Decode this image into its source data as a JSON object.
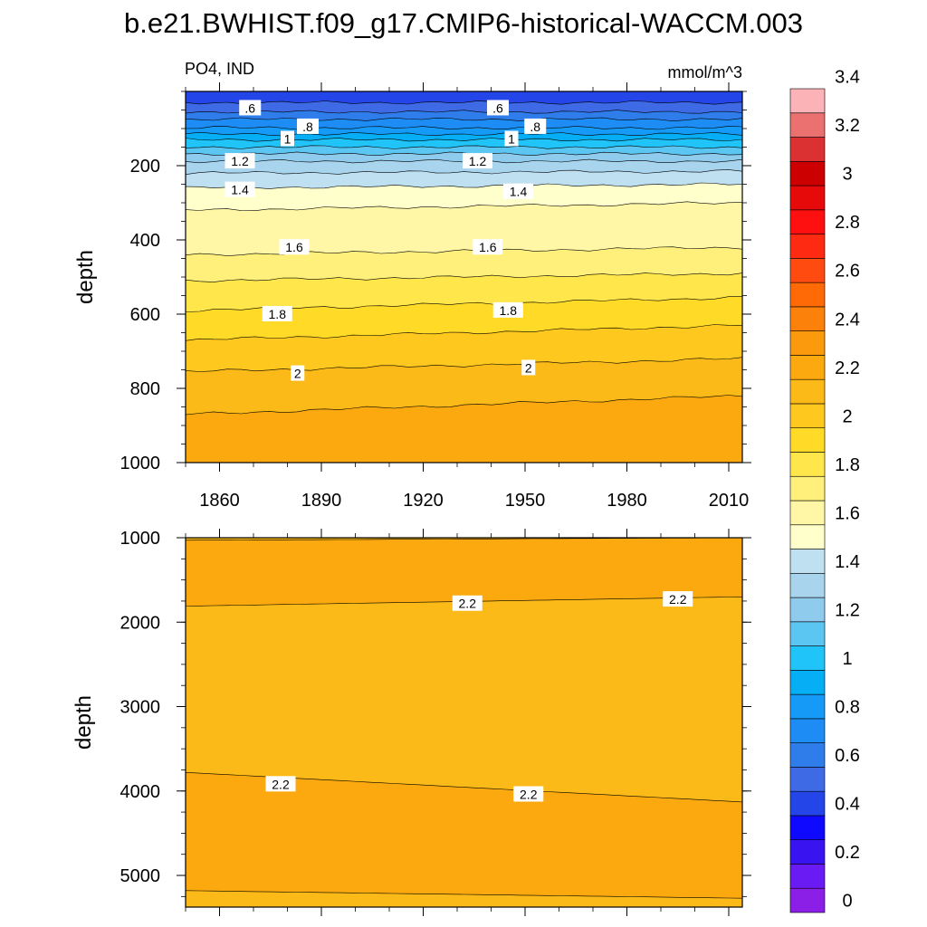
{
  "title": "b.e21.BWHIST.f09_g17.CMIP6-historical-WACCM.003",
  "colorbar": {
    "colors": [
      "#8B1FE8",
      "#6A1AF2",
      "#3A14F0",
      "#0F0AFF",
      "#2446E8",
      "#3F6AE6",
      "#2E7DEB",
      "#1E8CF5",
      "#159BF7",
      "#06AFF5",
      "#21C4F9",
      "#5CC6F2",
      "#8FCBEC",
      "#A9D4EE",
      "#BFE0F1",
      "#FFFFCC",
      "#FFF7A6",
      "#FFF07B",
      "#FFE64A",
      "#FFDA26",
      "#FFC81E",
      "#FBBA17",
      "#FBA90F",
      "#FB9A0C",
      "#FB810A",
      "#FF6A06",
      "#FF4B10",
      "#FF2A12",
      "#FF1010",
      "#E60A0A",
      "#CC0000",
      "#DB3132",
      "#EB7070",
      "#FBB3B8"
    ],
    "labels": [
      "0",
      "0.2",
      "0.4",
      "0.6",
      "0.8",
      "1",
      "1.2",
      "1.4",
      "1.6",
      "1.8",
      "2",
      "2.2",
      "2.4",
      "2.6",
      "2.8",
      "3",
      "3.2",
      "3.4"
    ]
  },
  "chart_data": [
    {
      "type": "contour",
      "panel": "upper",
      "left_label": "PO4, IND",
      "right_label": "mmol/m^3",
      "xlabel": "",
      "ylabel": "depth",
      "xlim": [
        1850,
        2014
      ],
      "ylim": [
        0,
        1000
      ],
      "y_reversed": true,
      "xticks": [
        1860,
        1890,
        1920,
        1950,
        1980,
        2010
      ],
      "yticks": [
        200,
        400,
        600,
        800,
        1000
      ],
      "contour_levels": [
        0.4,
        0.5,
        0.6,
        0.7,
        0.8,
        0.9,
        1.0,
        1.1,
        1.2,
        1.3,
        1.4,
        1.5,
        1.6,
        1.7,
        1.8,
        1.9,
        2.0,
        2.1
      ],
      "contour_depth_at_start": [
        30,
        55,
        75,
        98,
        115,
        130,
        150,
        168,
        188,
        220,
        260,
        320,
        440,
        510,
        590,
        670,
        755,
        870
      ],
      "contour_depth_at_end": [
        30,
        55,
        75,
        98,
        115,
        130,
        150,
        168,
        188,
        215,
        250,
        300,
        420,
        490,
        555,
        630,
        720,
        820
      ],
      "contour_labels": [
        {
          "text": ".6",
          "year": 1869,
          "depth": 45
        },
        {
          "text": ".6",
          "year": 1942,
          "depth": 45
        },
        {
          "text": ".8",
          "year": 1886,
          "depth": 95
        },
        {
          "text": ".8",
          "year": 1953,
          "depth": 95
        },
        {
          "text": "1",
          "year": 1880,
          "depth": 128
        },
        {
          "text": "1",
          "year": 1946,
          "depth": 128
        },
        {
          "text": "1.2",
          "year": 1866,
          "depth": 188
        },
        {
          "text": "1.2",
          "year": 1936,
          "depth": 188
        },
        {
          "text": "1.4",
          "year": 1866,
          "depth": 265
        },
        {
          "text": "1.4",
          "year": 1948,
          "depth": 270
        },
        {
          "text": "1.6",
          "year": 1882,
          "depth": 420
        },
        {
          "text": "1.6",
          "year": 1939,
          "depth": 420
        },
        {
          "text": "1.8",
          "year": 1877,
          "depth": 600
        },
        {
          "text": "1.8",
          "year": 1945,
          "depth": 590
        },
        {
          "text": "2",
          "year": 1883,
          "depth": 760
        },
        {
          "text": "2",
          "year": 1951,
          "depth": 745
        }
      ]
    },
    {
      "type": "contour",
      "panel": "lower",
      "xlabel": "",
      "ylabel": "depth",
      "xlim": [
        1850,
        2014
      ],
      "ylim": [
        1000,
        5375
      ],
      "y_reversed": true,
      "yticks": [
        1000,
        2000,
        3000,
        4000,
        5000
      ],
      "contour_levels": [
        2.1,
        2.2,
        2.2,
        2.1
      ],
      "contour_depth_at_start": [
        1030,
        1810,
        3780,
        5180
      ],
      "contour_depth_at_end": [
        1000,
        1700,
        4130,
        5270
      ],
      "contour_labels": [
        {
          "text": "2.2",
          "year": 1933,
          "depth": 1780
        },
        {
          "text": "2.2",
          "year": 1995,
          "depth": 1730
        },
        {
          "text": "2.2",
          "year": 1878,
          "depth": 3920
        },
        {
          "text": "2.2",
          "year": 1951,
          "depth": 4040
        }
      ]
    }
  ]
}
